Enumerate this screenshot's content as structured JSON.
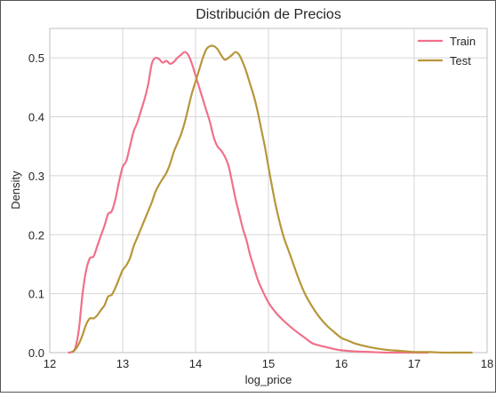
{
  "chart_data": {
    "type": "line",
    "title": "Distribución de Precios",
    "xlabel": "log_price",
    "ylabel": "Density",
    "xlim": [
      12,
      18
    ],
    "ylim": [
      0,
      0.55
    ],
    "x_ticks": [
      12,
      13,
      14,
      15,
      16,
      17,
      18
    ],
    "y_ticks": [
      0.0,
      0.1,
      0.2,
      0.3,
      0.4,
      0.5
    ],
    "x_tick_labels": [
      "12",
      "13",
      "14",
      "15",
      "16",
      "17",
      "18"
    ],
    "y_tick_labels": [
      "0.0",
      "0.1",
      "0.2",
      "0.3",
      "0.4",
      "0.5"
    ],
    "grid": true,
    "legend_position": "top-right",
    "colors": {
      "train": "#f0718a",
      "test": "#b8963a",
      "grid": "#d6d6d6",
      "frame": "#bfbfbf"
    },
    "series": [
      {
        "name": "Train",
        "x": [
          12.25,
          12.3,
          12.35,
          12.4,
          12.45,
          12.5,
          12.55,
          12.6,
          12.65,
          12.7,
          12.75,
          12.8,
          12.85,
          12.9,
          12.95,
          13.0,
          13.05,
          13.1,
          13.15,
          13.2,
          13.25,
          13.3,
          13.35,
          13.4,
          13.45,
          13.5,
          13.55,
          13.6,
          13.65,
          13.7,
          13.75,
          13.8,
          13.85,
          13.9,
          13.95,
          14.0,
          14.05,
          14.1,
          14.15,
          14.2,
          14.25,
          14.3,
          14.35,
          14.4,
          14.45,
          14.5,
          14.55,
          14.6,
          14.65,
          14.7,
          14.75,
          14.8,
          14.85,
          14.9,
          15.0,
          15.1,
          15.2,
          15.3,
          15.4,
          15.5,
          15.6,
          15.7,
          15.8,
          15.9,
          16.0,
          16.2,
          16.4,
          16.6,
          16.8,
          17.0,
          17.2
        ],
        "y": [
          0.0,
          0.001,
          0.008,
          0.04,
          0.1,
          0.14,
          0.16,
          0.163,
          0.18,
          0.198,
          0.215,
          0.235,
          0.24,
          0.26,
          0.29,
          0.315,
          0.325,
          0.35,
          0.375,
          0.39,
          0.41,
          0.43,
          0.455,
          0.49,
          0.5,
          0.498,
          0.492,
          0.495,
          0.49,
          0.493,
          0.5,
          0.505,
          0.51,
          0.505,
          0.49,
          0.47,
          0.45,
          0.43,
          0.41,
          0.39,
          0.365,
          0.35,
          0.343,
          0.333,
          0.318,
          0.29,
          0.26,
          0.235,
          0.21,
          0.19,
          0.165,
          0.145,
          0.125,
          0.11,
          0.085,
          0.068,
          0.055,
          0.044,
          0.034,
          0.025,
          0.016,
          0.012,
          0.009,
          0.006,
          0.004,
          0.002,
          0.001,
          0.0,
          0.0,
          0.0,
          0.0
        ]
      },
      {
        "name": "Test",
        "x": [
          12.3,
          12.35,
          12.4,
          12.45,
          12.5,
          12.55,
          12.6,
          12.65,
          12.7,
          12.75,
          12.8,
          12.85,
          12.9,
          12.95,
          13.0,
          13.05,
          13.1,
          13.15,
          13.2,
          13.25,
          13.3,
          13.35,
          13.4,
          13.45,
          13.5,
          13.55,
          13.6,
          13.65,
          13.7,
          13.75,
          13.8,
          13.85,
          13.9,
          13.95,
          14.0,
          14.05,
          14.1,
          14.15,
          14.2,
          14.25,
          14.3,
          14.35,
          14.4,
          14.45,
          14.5,
          14.55,
          14.6,
          14.65,
          14.7,
          14.75,
          14.8,
          14.85,
          14.9,
          14.95,
          15.0,
          15.1,
          15.2,
          15.3,
          15.4,
          15.5,
          15.6,
          15.7,
          15.8,
          15.9,
          16.0,
          16.1,
          16.2,
          16.4,
          16.6,
          16.8,
          17.0,
          17.2,
          17.4,
          17.6,
          17.8
        ],
        "y": [
          0.0,
          0.005,
          0.015,
          0.03,
          0.048,
          0.058,
          0.058,
          0.063,
          0.072,
          0.08,
          0.095,
          0.098,
          0.11,
          0.125,
          0.14,
          0.148,
          0.16,
          0.18,
          0.195,
          0.21,
          0.225,
          0.24,
          0.255,
          0.273,
          0.285,
          0.295,
          0.305,
          0.32,
          0.34,
          0.355,
          0.37,
          0.39,
          0.415,
          0.44,
          0.46,
          0.48,
          0.5,
          0.515,
          0.52,
          0.52,
          0.515,
          0.505,
          0.497,
          0.5,
          0.505,
          0.51,
          0.505,
          0.492,
          0.475,
          0.455,
          0.435,
          0.41,
          0.38,
          0.35,
          0.315,
          0.25,
          0.2,
          0.165,
          0.13,
          0.1,
          0.078,
          0.06,
          0.046,
          0.035,
          0.025,
          0.02,
          0.015,
          0.009,
          0.005,
          0.003,
          0.001,
          0.001,
          0.0,
          0.0,
          0.0
        ]
      }
    ]
  }
}
